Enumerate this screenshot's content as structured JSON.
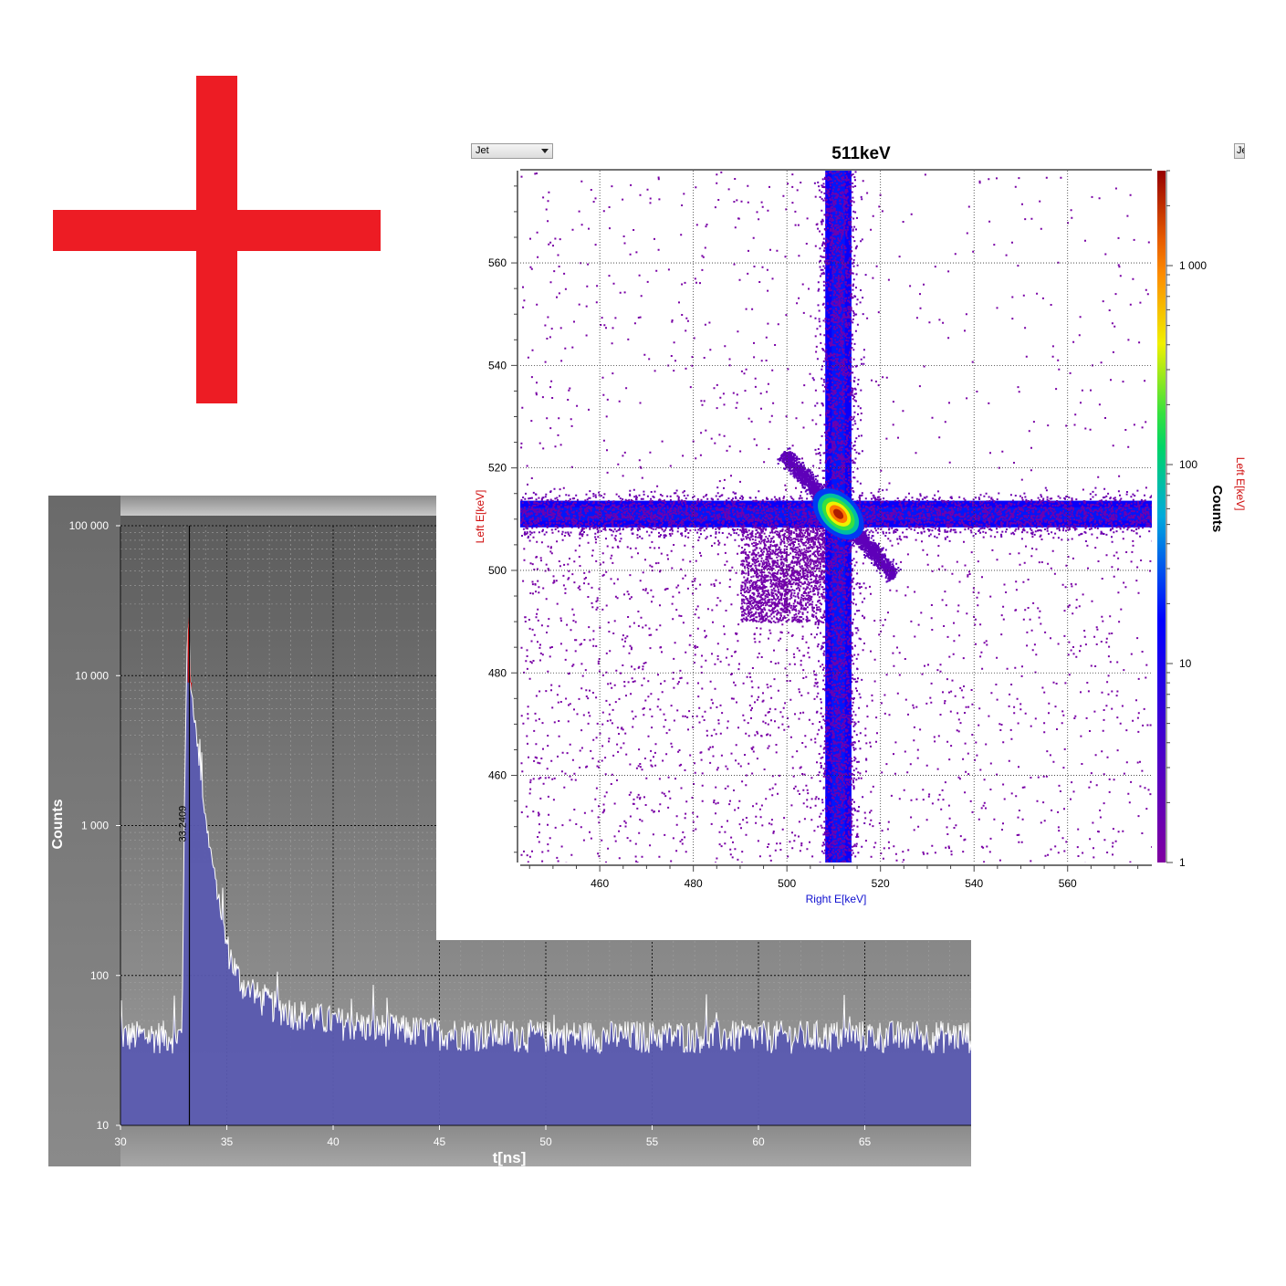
{
  "colors": {
    "cross": "#ed1c24",
    "hist_bg": "#6e6e6e",
    "hist_fill": "#5a5ab0",
    "hist_line": "#ffffff",
    "hist_peak": "#d01010",
    "heat_grid": "#333333",
    "x_label_color": "#1010d0",
    "y_label_color": "#d01010"
  },
  "icons": {
    "cross": "red-plus-icon"
  },
  "heatmap_panel": {
    "colormap_label": "Jet",
    "right_clipped_label": "Je",
    "right_clipped_axis_label": "Left E[keV]"
  },
  "chart_data": [
    {
      "type": "area",
      "title": "",
      "xlabel": "t[ns]",
      "ylabel": "Counts",
      "xlim": [
        30,
        70
      ],
      "ylim": [
        10,
        100000
      ],
      "yscale": "log",
      "grid": true,
      "x_ticks": [
        30,
        35,
        40,
        45,
        50,
        55,
        60,
        65
      ],
      "x_tick_labels": [
        "30",
        "35",
        "40",
        "45",
        "50",
        "55",
        "60",
        "65"
      ],
      "y_ticks": [
        10,
        100,
        1000,
        10000,
        100000
      ],
      "y_tick_labels": [
        "10",
        "100",
        "1 000",
        "10 000",
        "100 000"
      ],
      "marker": {
        "x": 33.2409,
        "label": "33.2409"
      },
      "series": [
        {
          "x": [
            30,
            31,
            32,
            32.9,
            33.0,
            33.1,
            33.2,
            33.3,
            33.5,
            33.8,
            34.0,
            34.5,
            35.0,
            35.5,
            36,
            37,
            38,
            40,
            42,
            45,
            50,
            55,
            60,
            65,
            70
          ],
          "values": [
            40,
            40,
            40,
            40,
            1200,
            10000,
            25000,
            9000,
            5000,
            2000,
            1100,
            400,
            160,
            100,
            80,
            65,
            58,
            50,
            45,
            42,
            40,
            40,
            40,
            40,
            40
          ]
        }
      ]
    },
    {
      "type": "heatmap",
      "title": "511keV",
      "xlabel": "Right E[keV]",
      "ylabel": "Left E[keV]",
      "xlim": [
        443,
        578
      ],
      "ylim": [
        443,
        578
      ],
      "x_ticks": [
        460,
        480,
        500,
        520,
        540,
        560
      ],
      "x_tick_labels": [
        "460",
        "480",
        "500",
        "520",
        "540",
        "560"
      ],
      "y_ticks": [
        460,
        480,
        500,
        520,
        540,
        560
      ],
      "y_tick_labels": [
        "460",
        "480",
        "500",
        "520",
        "540",
        "560"
      ],
      "grid": true,
      "colorbar": {
        "label": "Counts",
        "scale": "log",
        "range": [
          1,
          3000
        ],
        "ticks": [
          1,
          10,
          100,
          1000
        ],
        "tick_labels": [
          "1",
          "10",
          "100",
          "1 000"
        ],
        "colormap": "Jet"
      },
      "peak": {
        "x": 511,
        "y": 511
      }
    }
  ]
}
